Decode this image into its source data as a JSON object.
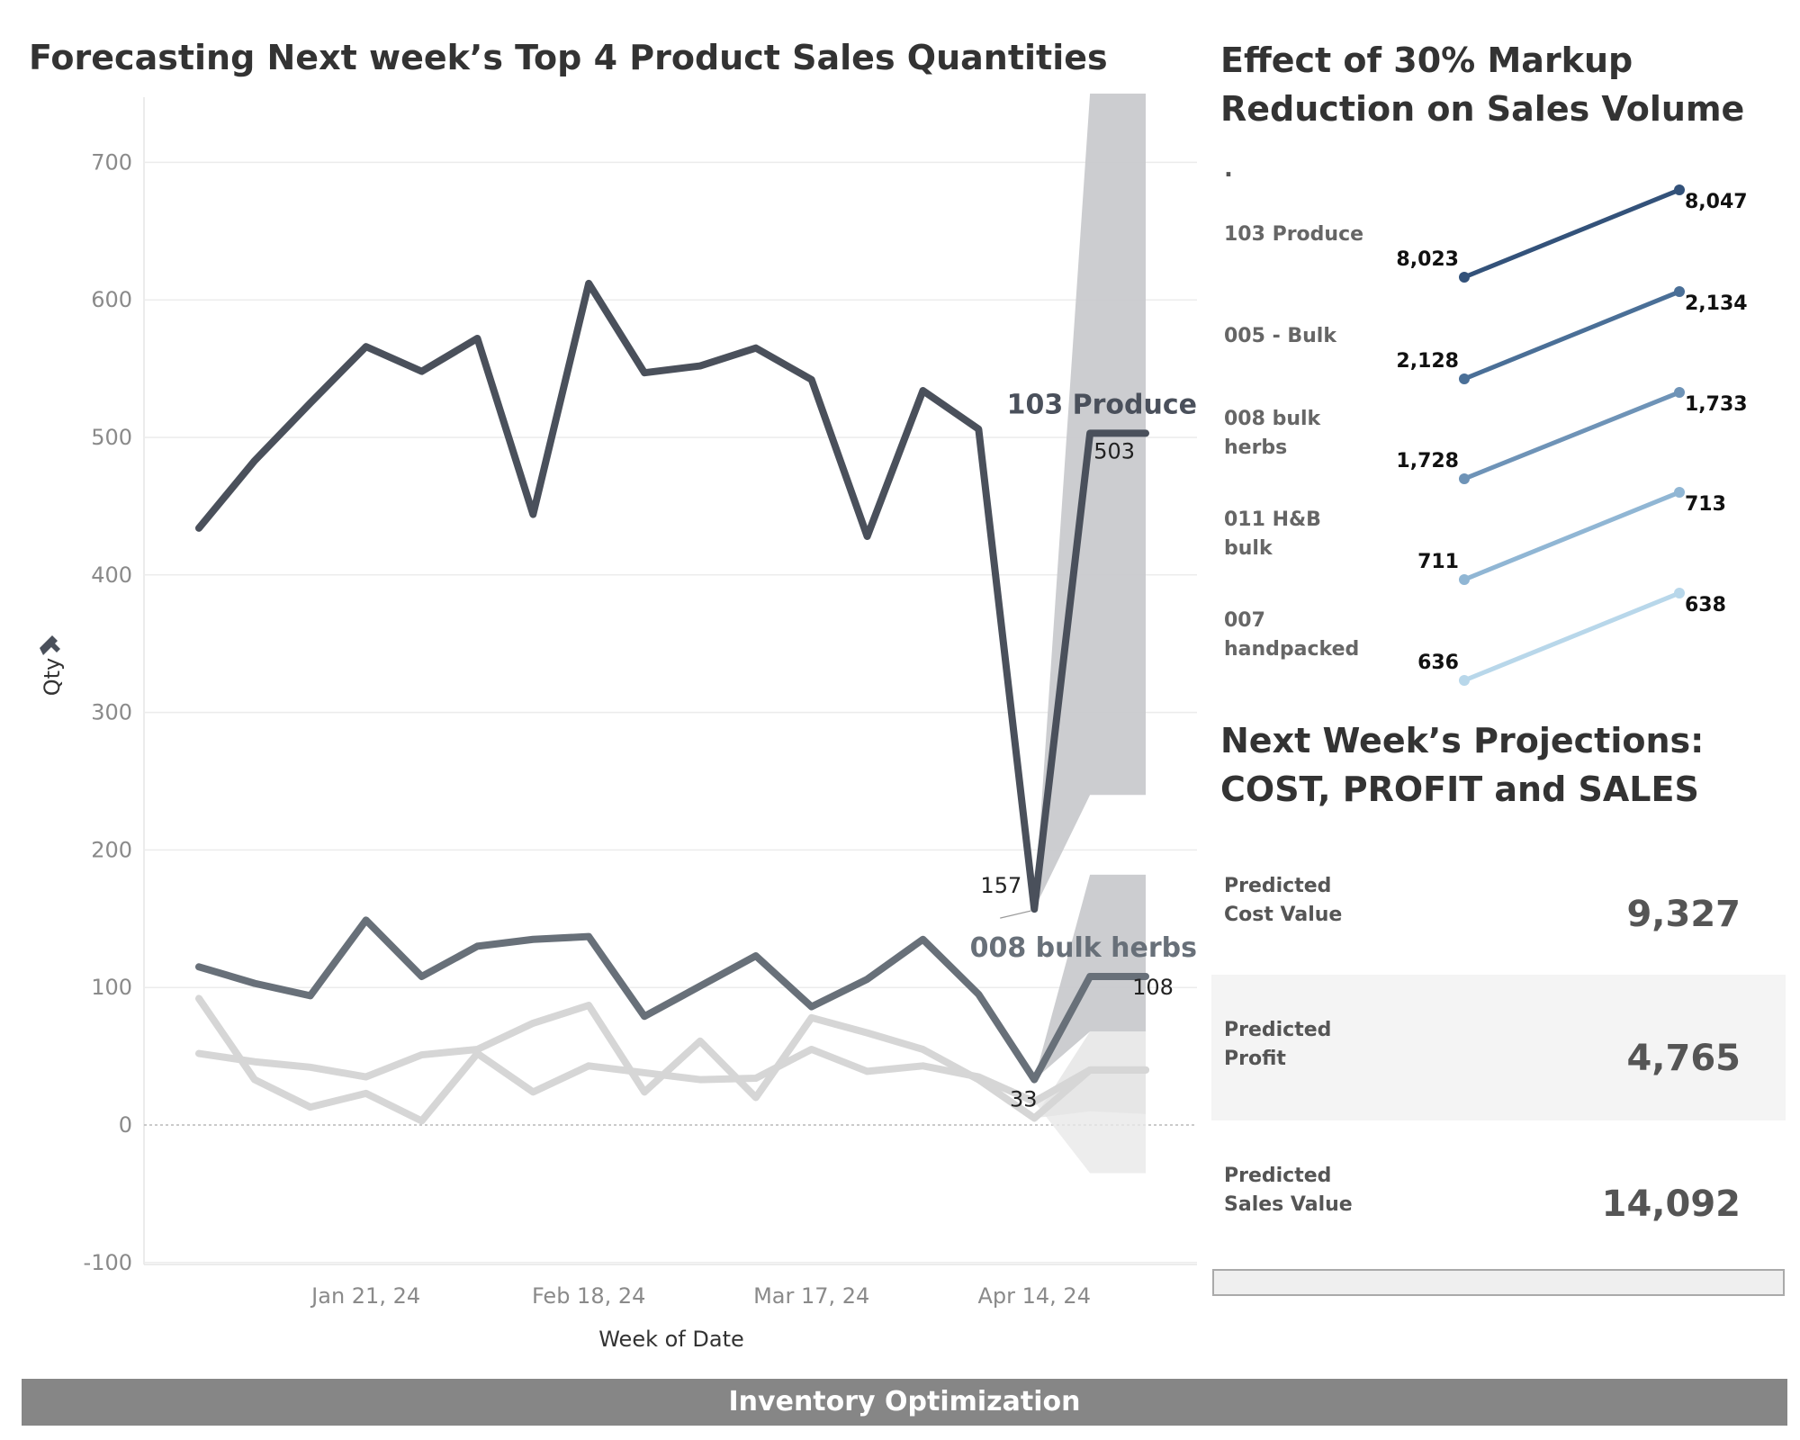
{
  "titles": {
    "main": "Forecasting Next week’s Top 4 Product Sales Quantities",
    "markup": "Effect of 30% Markup Reduction on Sales Volume",
    "projections": "Next Week’s Projections: COST, PROFIT and SALES"
  },
  "footer": "Inventory Optimization",
  "colors": {
    "primary": "#4a505b",
    "secondary": "#687079",
    "muted": "#d6d6d6",
    "band": "#c9cacd",
    "footer": "#868686"
  },
  "chart_data": [
    {
      "type": "line",
      "title": "Forecasting Next week’s Top 4 Product Sales Quantities",
      "xlabel": "Week of Date",
      "ylabel": "Qty",
      "ylim": [
        -100,
        750
      ],
      "yticks": [
        -100,
        0,
        100,
        200,
        300,
        400,
        500,
        600,
        700
      ],
      "xticks": [
        "Jan 21, 24",
        "Feb 18, 24",
        "Mar 17, 24",
        "Apr 14, 24"
      ],
      "xtick_index": [
        3,
        7,
        11,
        15
      ],
      "x": [
        "Dec 31, 23",
        "Jan 7, 24",
        "Jan 14, 24",
        "Jan 21, 24",
        "Jan 28, 24",
        "Feb 4, 24",
        "Feb 11, 24",
        "Feb 18, 24",
        "Feb 25, 24",
        "Mar 3, 24",
        "Mar 10, 24",
        "Mar 17, 24",
        "Mar 24, 24",
        "Mar 31, 24",
        "Apr 7, 24",
        "Apr 14, 24",
        "Apr 21, 24",
        "Apr 28, 24"
      ],
      "grid": true,
      "series": [
        {
          "name": "103 Produce",
          "values": [
            434,
            483,
            525,
            566,
            548,
            572,
            444,
            612,
            547,
            552,
            565,
            542,
            428,
            534,
            506,
            157,
            503,
            503
          ],
          "forecast_from": 15,
          "band_upper": [
            750,
            750
          ],
          "band_lower": [
            240,
            240
          ],
          "labels": [
            {
              "index": 15,
              "text": "157"
            },
            {
              "index": 16,
              "text": "503"
            }
          ]
        },
        {
          "name": "008 bulk herbs",
          "values": [
            115,
            103,
            94,
            149,
            108,
            130,
            135,
            137,
            79,
            101,
            123,
            86,
            106,
            135,
            95,
            33,
            108,
            108
          ],
          "forecast_from": 15,
          "band_upper": [
            182,
            182
          ],
          "band_lower": [
            68,
            68
          ],
          "labels": [
            {
              "index": 15,
              "text": "33"
            },
            {
              "index": 17,
              "text": "108"
            }
          ]
        },
        {
          "values": [
            52,
            46,
            42,
            35,
            51,
            55,
            74,
            87,
            24,
            61,
            20,
            78,
            67,
            55,
            33,
            5,
            40,
            40
          ],
          "forecast_from": 15,
          "band_upper": [
            68,
            68
          ],
          "band_lower": [
            10,
            8
          ]
        },
        {
          "values": [
            92,
            33,
            13,
            23,
            3,
            52,
            24,
            43,
            38,
            33,
            34,
            55,
            39,
            43,
            35,
            17,
            40,
            40
          ],
          "forecast_from": 15,
          "band_upper": [
            40,
            40
          ],
          "band_lower": [
            -35,
            -35
          ]
        }
      ]
    },
    {
      "type": "line",
      "title": "Effect of 30% Markup Reduction on Sales Volume",
      "series": [
        {
          "name": "103 Produce",
          "values": [
            8023,
            8047
          ],
          "labels": [
            "8,023",
            "8,047"
          ],
          "color": "#33527a"
        },
        {
          "name": "005 - Bulk",
          "values": [
            2128,
            2134
          ],
          "labels": [
            "2,128",
            "2,134"
          ],
          "color": "#4a6f97"
        },
        {
          "name": "008 bulk herbs",
          "values": [
            1728,
            1733
          ],
          "labels": [
            "1,728",
            "1,733"
          ],
          "color": "#6e93b7"
        },
        {
          "name": "011 H&B bulk",
          "values": [
            711,
            713
          ],
          "labels": [
            "711",
            "713"
          ],
          "color": "#90b6d4"
        },
        {
          "name": "007 handpacked",
          "values": [
            636,
            638
          ],
          "labels": [
            "636",
            "638"
          ],
          "color": "#b8d7ea"
        }
      ],
      "dot_label": "."
    }
  ],
  "slope_labels": [
    [
      "103 Produce"
    ],
    [
      "005 - Bulk"
    ],
    [
      "008 bulk",
      "herbs"
    ],
    [
      "011 H&B",
      "bulk"
    ],
    [
      "007",
      "handpacked"
    ]
  ],
  "projections": [
    {
      "label_lines": [
        "Predicted",
        "Cost Value"
      ],
      "value": "9,327"
    },
    {
      "label_lines": [
        "Predicted",
        "Profit"
      ],
      "value": "4,765"
    },
    {
      "label_lines": [
        "Predicted",
        "Sales Value"
      ],
      "value": "14,092"
    }
  ]
}
